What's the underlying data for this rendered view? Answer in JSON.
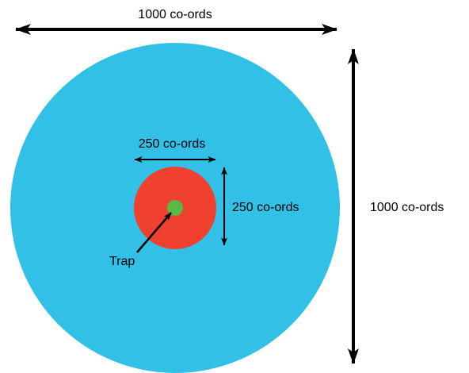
{
  "colors": {
    "outer_circle": "#33c0e6",
    "inner_circle": "#ef4030",
    "trap_dot": "#5aba47",
    "arrow": "#000000"
  },
  "labels": {
    "top_width": "1000 co-ords",
    "right_height": "1000 co-ords",
    "inner_width": "250 co-ords",
    "inner_height": "250 co-ords",
    "trap": "Trap"
  }
}
